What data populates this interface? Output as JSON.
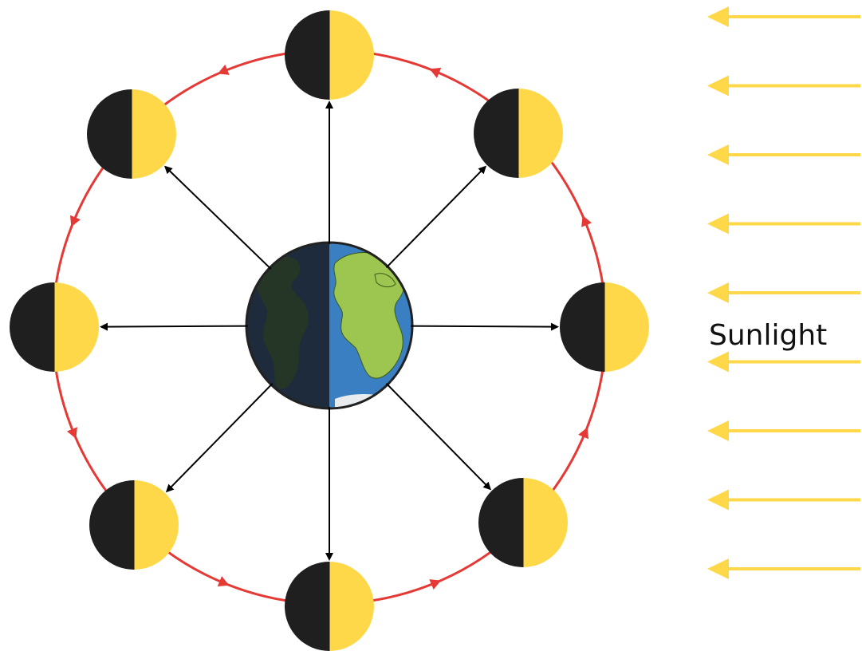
{
  "sunlight": {
    "label": "Sunlight",
    "direction": "right-to-left",
    "ray_count": 9
  },
  "moon_positions": [
    "top",
    "top-right",
    "right",
    "bottom-right",
    "bottom",
    "bottom-left",
    "left",
    "top-left"
  ],
  "orbit_direction": "counterclockwise",
  "colors": {
    "orbit": "#e53935",
    "sunlight": "#ffd84a",
    "moon_dark": "#1f1f1f",
    "moon_lit": "#ffd84a",
    "pointer": "#000000",
    "earth_ocean": "#3a7fc1",
    "earth_land": "#9cc64f",
    "earth_night": "#1e2b3c"
  }
}
